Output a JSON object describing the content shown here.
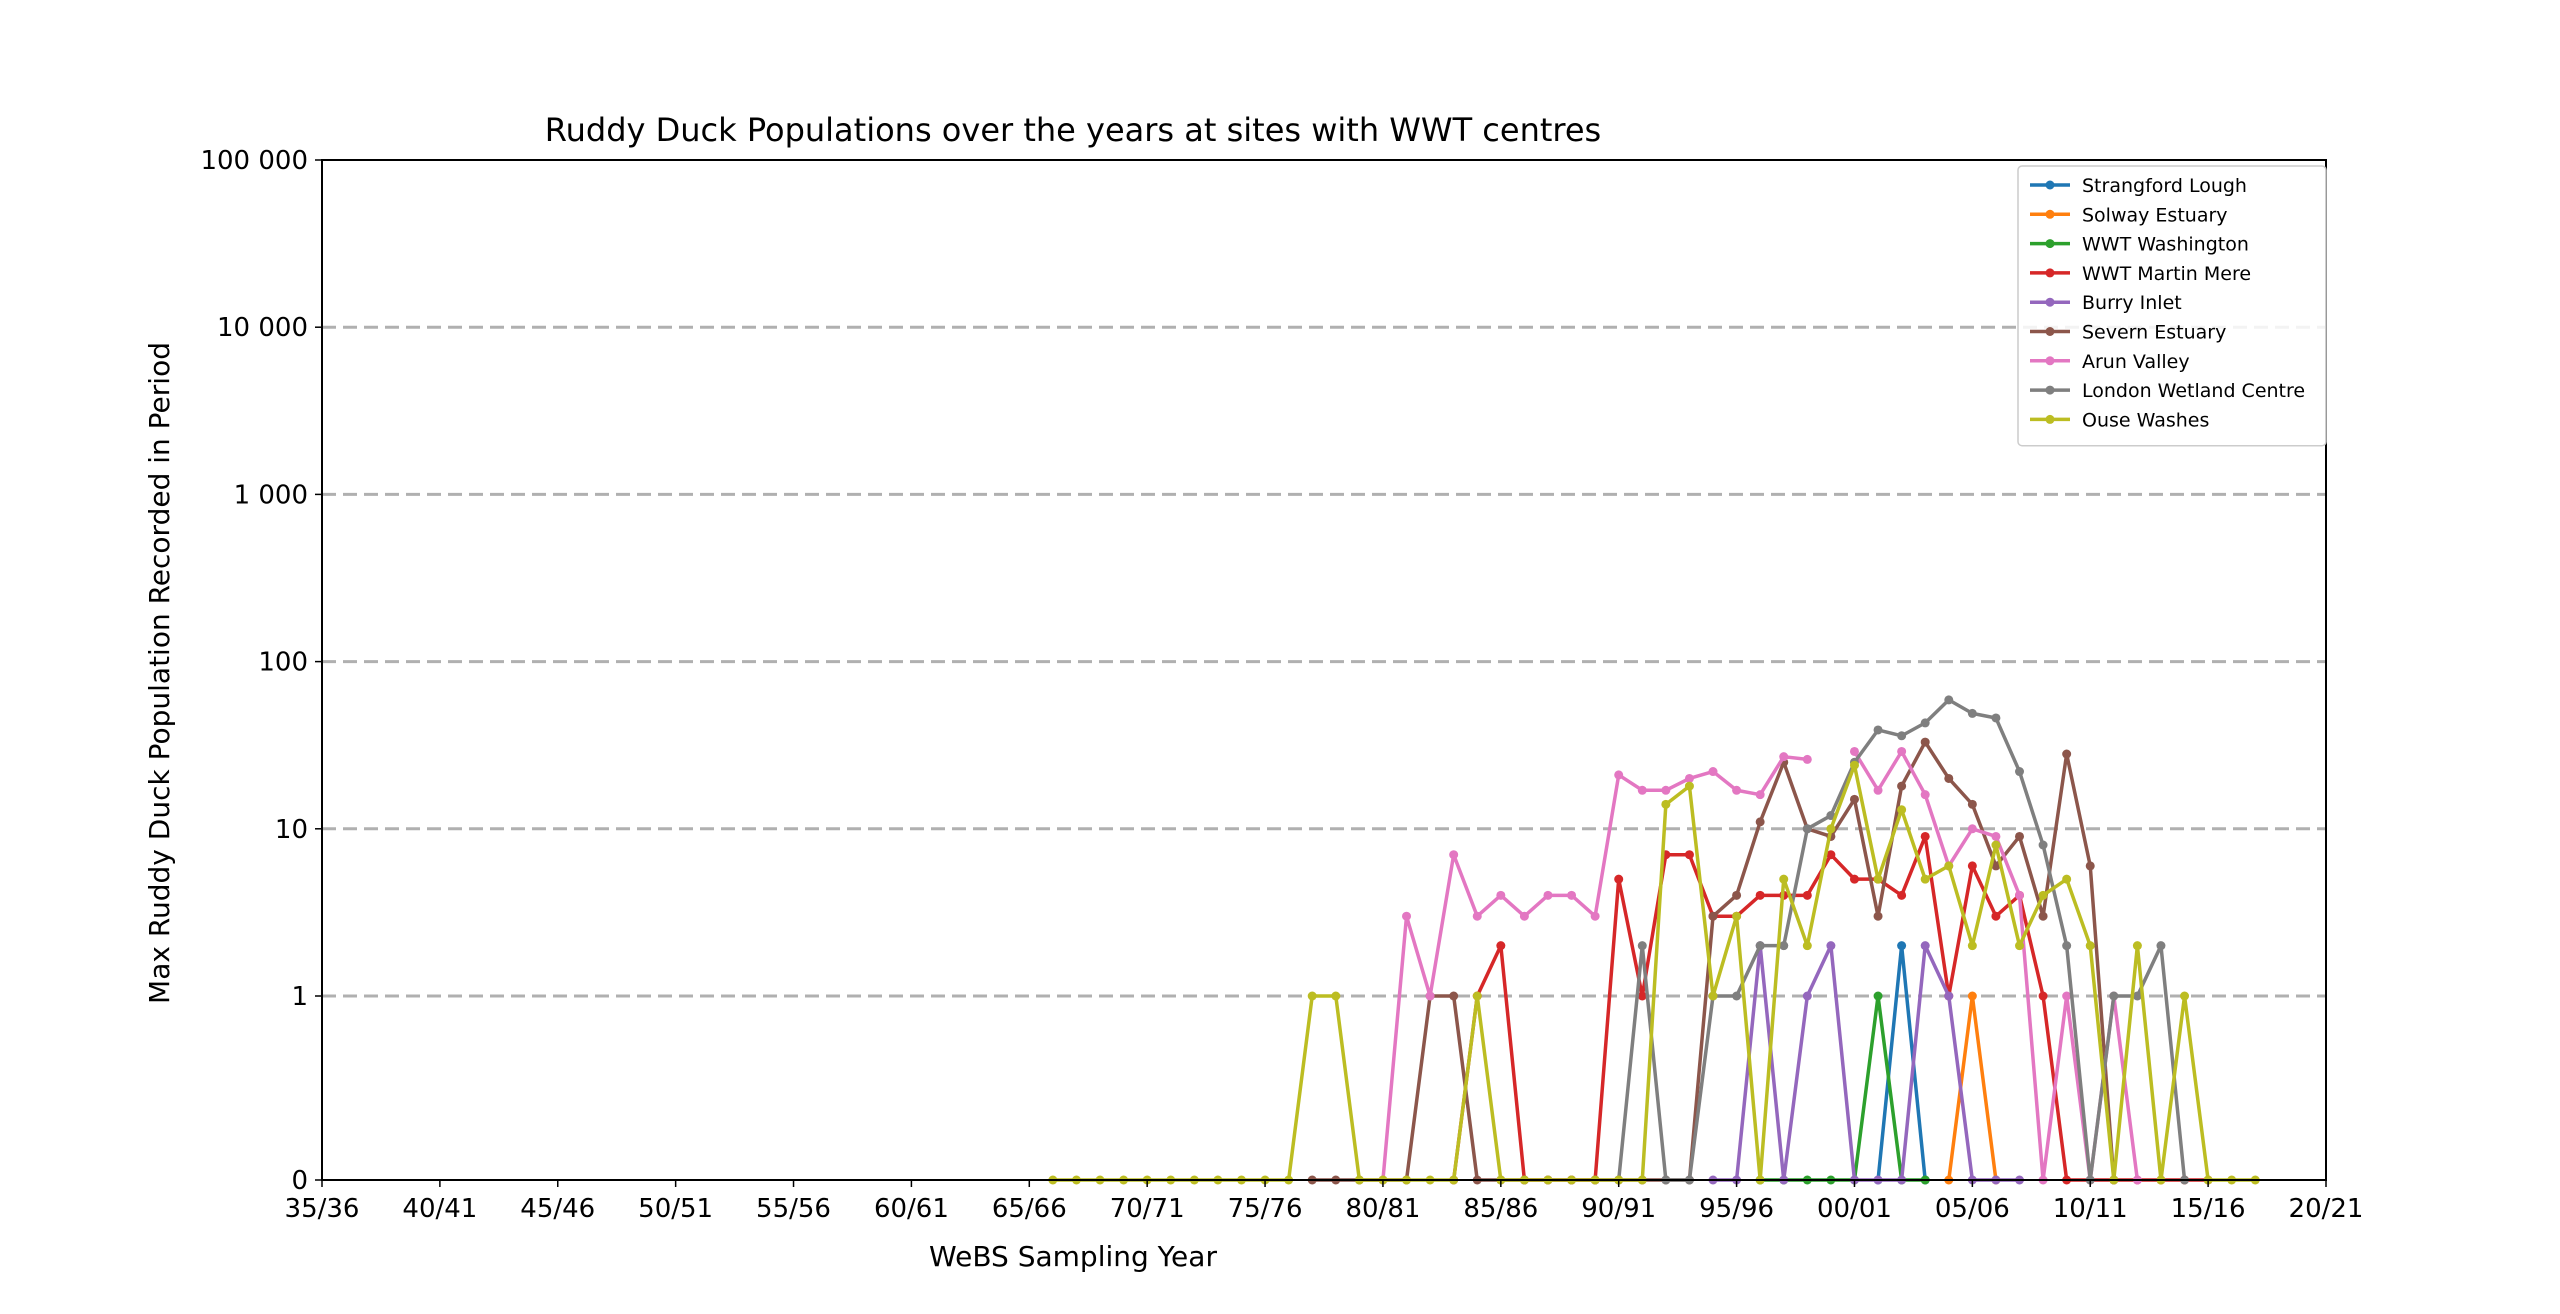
{
  "chart_data": {
    "type": "line",
    "title": "Ruddy Duck Populations over the years at sites with WWT centres",
    "xlabel": "WeBS Sampling Year",
    "ylabel": "Max Ruddy Duck Population Recorded in Period",
    "y_scale": "symlog",
    "grid": "y-major dashed",
    "legend_position": "top-right",
    "x_start_year": 1935,
    "xlim": [
      1935,
      2020
    ],
    "x_tick_labels": [
      "35/36",
      "40/41",
      "45/46",
      "50/51",
      "55/56",
      "60/61",
      "65/66",
      "70/71",
      "75/76",
      "80/81",
      "85/86",
      "90/91",
      "95/96",
      "00/01",
      "05/06",
      "10/11",
      "15/16",
      "20/21"
    ],
    "y_ticks": [
      0,
      1,
      10,
      100,
      1000,
      10000,
      100000
    ],
    "y_tick_labels": [
      "0",
      "1",
      "10",
      "100",
      "1 000",
      "10 000",
      "100 000"
    ],
    "series": [
      {
        "name": "Strangford Lough",
        "color": "#1f77b4",
        "start": 2001,
        "values": [
          0,
          2,
          0
        ]
      },
      {
        "name": "Solway Estuary",
        "color": "#ff7f0e",
        "start": 2004,
        "values": [
          0,
          1,
          0
        ]
      },
      {
        "name": "WWT Washington",
        "color": "#2ca02c",
        "start": 1996,
        "values": [
          0,
          0,
          0,
          0,
          0,
          1,
          0,
          0
        ]
      },
      {
        "name": "WWT Martin Mere",
        "color": "#d62728",
        "start": 1983,
        "values": [
          0,
          1,
          2,
          0,
          0,
          0,
          0,
          5,
          1,
          7,
          7,
          3,
          3,
          4,
          4,
          4,
          7,
          5,
          5,
          4,
          9,
          1,
          6,
          3,
          4,
          1,
          0,
          0,
          0,
          0,
          0,
          0,
          0
        ]
      },
      {
        "name": "Burry Inlet",
        "color": "#9467bd",
        "start": 1994,
        "values": [
          0,
          0,
          2,
          0,
          1,
          2,
          0,
          0,
          0,
          2,
          1,
          0,
          0,
          0
        ]
      },
      {
        "name": "Severn Estuary",
        "color": "#8c564b",
        "start": 1977,
        "values": [
          0,
          0,
          0,
          0,
          0,
          1,
          1,
          0,
          0,
          0,
          0,
          0,
          0,
          0,
          0,
          0,
          0,
          3,
          4,
          11,
          25,
          10,
          9,
          15,
          3,
          18,
          33,
          20,
          14,
          6,
          9,
          3,
          28,
          6,
          0
        ]
      },
      {
        "name": "Arun Valley",
        "color": "#e377c2",
        "start": 1980,
        "values": [
          0,
          3,
          1,
          7,
          3,
          4,
          3,
          4,
          4,
          3,
          21,
          17,
          17,
          20,
          22,
          17,
          16,
          27,
          26,
          null,
          29,
          17,
          29,
          16,
          6,
          10,
          9,
          4,
          0,
          1,
          0,
          1,
          0
        ]
      },
      {
        "name": "London Wetland Centre",
        "color": "#7f7f7f",
        "start": 1990,
        "values": [
          0,
          2,
          0,
          0,
          1,
          1,
          2,
          2,
          10,
          12,
          25,
          39,
          36,
          43,
          59,
          49,
          46,
          22,
          8,
          2,
          0,
          1,
          1,
          2,
          0
        ]
      },
      {
        "name": "Ouse Washes",
        "color": "#bcbd22",
        "start": 1966,
        "values": [
          0,
          0,
          0,
          0,
          0,
          0,
          0,
          0,
          0,
          0,
          0,
          1,
          1,
          0,
          0,
          0,
          0,
          0,
          1,
          0,
          0,
          0,
          0,
          0,
          0,
          0,
          14,
          18,
          1,
          3,
          0,
          5,
          2,
          10,
          24,
          5,
          13,
          5,
          6,
          2,
          8,
          2,
          4,
          5,
          2,
          0,
          2,
          0,
          1,
          0,
          0,
          0
        ]
      }
    ]
  }
}
